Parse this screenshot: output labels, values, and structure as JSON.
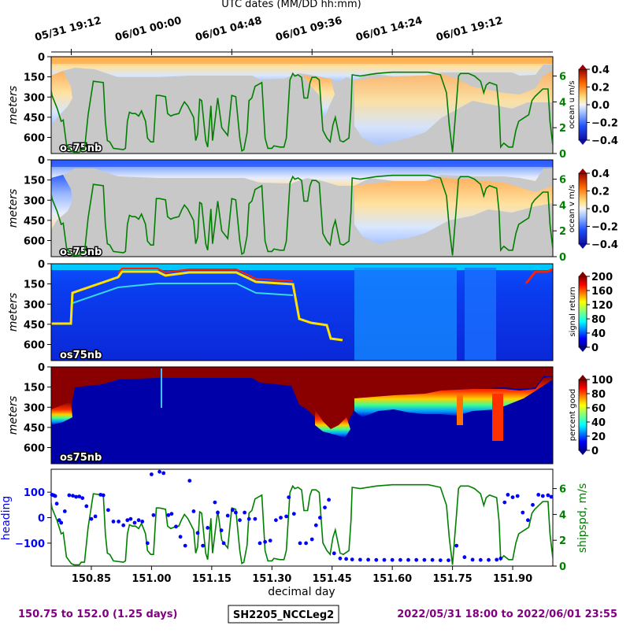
{
  "top_axis": {
    "label": "UTC dates (MM/DD hh:mm)",
    "ticks": [
      {
        "day": 150.8,
        "label": "05/31 19:12"
      },
      {
        "day": 151.0,
        "label": "06/01 00:00"
      },
      {
        "day": 151.2,
        "label": "06/01 04:48"
      },
      {
        "day": 151.4,
        "label": "06/01 09:36"
      },
      {
        "day": 151.6,
        "label": "06/01 14:24"
      },
      {
        "day": 151.8,
        "label": "06/01 19:12"
      }
    ]
  },
  "x_axis": {
    "label": "decimal day",
    "range": [
      150.75,
      152.0
    ],
    "ticks": [
      "150.85",
      "151.00",
      "151.15",
      "151.30",
      "151.45",
      "151.60",
      "151.75",
      "151.90"
    ],
    "tick_values": [
      150.85,
      151.0,
      151.15,
      151.3,
      151.45,
      151.6,
      151.75,
      151.9
    ]
  },
  "depth_axis": {
    "label": "meters",
    "range": [
      0,
      720
    ],
    "ticks": [
      "0",
      "150",
      "300",
      "450",
      "600"
    ],
    "tick_values": [
      0,
      150,
      300,
      450,
      600
    ]
  },
  "instrument": "os75nb",
  "panels": [
    {
      "id": "u",
      "colorbar_label": "ocean u m/s",
      "colorbar_ticks": [
        "0.4",
        "0.2",
        "0.0",
        "−0.2",
        "−0.4"
      ],
      "colormap": "diverging",
      "shipspd_ticks": [
        "6",
        "4",
        "2",
        "0"
      ]
    },
    {
      "id": "v",
      "colorbar_label": "ocean v m/s",
      "colorbar_ticks": [
        "0.4",
        "0.2",
        "0.0",
        "−0.2",
        "−0.4"
      ],
      "colormap": "diverging",
      "shipspd_ticks": [
        "6",
        "4",
        "2",
        "0"
      ]
    },
    {
      "id": "amp",
      "colorbar_label": "signal return",
      "colorbar_ticks": [
        "200",
        "160",
        "120",
        "80",
        "40",
        "0"
      ],
      "colormap": "jet"
    },
    {
      "id": "pg",
      "colorbar_label": "percent good",
      "colorbar_ticks": [
        "100",
        "80",
        "60",
        "40",
        "20",
        "0"
      ],
      "colormap": "jet"
    }
  ],
  "bottom_panel": {
    "heading_label": "heading",
    "heading_ticks": [
      "100",
      "0",
      "−100"
    ],
    "heading_tick_values": [
      100,
      0,
      -100
    ],
    "shipspd_label": "shipspd, m/s",
    "shipspd_ticks": [
      "6",
      "4",
      "2",
      "0"
    ],
    "shipspd_tick_values": [
      6,
      4,
      2,
      0
    ]
  },
  "footer": {
    "range_text": "150.75 to 152.0 (1.25 days)",
    "cruise_id": "SH2205_NCCLeg2",
    "date_range_text": "2022/05/31 18:00 to 2022/06/01 23:55"
  },
  "colors": {
    "shipspd_line": "#008000",
    "heading_points": "#0000ff",
    "footer_text": "#800080",
    "no_data": "#c8c8c8"
  },
  "chart_data": {
    "type": "line",
    "title": "",
    "xlabel": "decimal day",
    "xlim": [
      150.75,
      152.0
    ],
    "shipspd_ylim": [
      0,
      7.5
    ],
    "heading_ylim": [
      -190,
      190
    ],
    "series": [
      {
        "name": "shipspd, m/s",
        "x": [
          150.75,
          150.752,
          150.765,
          150.775,
          150.78,
          150.788,
          150.8,
          150.807,
          150.813,
          150.82,
          150.825,
          150.833,
          150.842,
          150.855,
          150.88,
          150.885,
          150.89,
          150.896,
          150.905,
          150.93,
          150.935,
          150.94,
          150.945,
          150.952,
          150.96,
          150.968,
          150.975,
          150.985,
          150.99,
          150.998,
          151.005,
          151.012,
          151.02,
          151.035,
          151.04,
          151.048,
          151.055,
          151.068,
          151.075,
          151.082,
          151.09,
          151.105,
          151.11,
          151.115,
          151.12,
          151.125,
          151.135,
          151.14,
          151.148,
          151.152,
          151.165,
          151.175,
          151.19,
          151.2,
          151.21,
          151.22,
          151.225,
          151.23,
          151.238,
          151.243,
          151.25,
          151.258,
          151.275,
          151.283,
          151.29,
          151.3,
          151.305,
          151.32,
          151.33,
          151.336,
          151.345,
          151.352,
          151.357,
          151.365,
          151.374,
          151.38,
          151.389,
          151.395,
          151.4,
          151.41,
          151.418,
          151.427,
          151.437,
          151.445,
          151.452,
          151.458,
          151.47,
          151.478,
          151.492,
          151.497,
          151.5,
          151.52,
          151.56,
          151.6,
          151.64,
          151.69,
          151.72,
          151.735,
          151.742,
          151.75,
          151.76,
          151.765,
          151.77,
          151.79,
          151.805,
          151.82,
          151.828,
          151.834,
          151.842,
          151.86,
          151.866,
          151.87,
          151.875,
          151.878,
          151.89,
          151.9,
          151.908,
          151.915,
          151.925,
          151.94,
          151.948,
          151.955,
          151.975,
          151.988,
          151.993,
          152.0
        ],
        "y": [
          4.9,
          4.5,
          3.5,
          2.5,
          2.6,
          0.7,
          0.2,
          0.1,
          0.1,
          0.1,
          0.3,
          0.3,
          3.0,
          5.6,
          5.5,
          2.5,
          1.0,
          0.9,
          0.4,
          0.3,
          0.4,
          2.5,
          3.2,
          3.1,
          3.1,
          2.9,
          3.3,
          2.5,
          1.2,
          0.9,
          0.9,
          4.5,
          4.5,
          4.4,
          3.1,
          2.9,
          3.0,
          3.1,
          3.6,
          4.0,
          3.7,
          2.8,
          1.0,
          1.5,
          4.2,
          4.1,
          1.0,
          0.5,
          3.7,
          1.0,
          4.3,
          2.0,
          1.4,
          4.5,
          4.4,
          1.2,
          0.2,
          0.3,
          1.6,
          4.1,
          4.3,
          5.2,
          5.5,
          1.2,
          0.4,
          0.4,
          0.6,
          0.5,
          0.5,
          1.2,
          5.7,
          6.2,
          6.0,
          6.1,
          5.9,
          4.3,
          4.3,
          5.5,
          5.9,
          5.9,
          5.7,
          1.8,
          1.2,
          0.9,
          2.2,
          2.8,
          1.0,
          0.9,
          1.2,
          3.5,
          6.1,
          6.0,
          6.2,
          6.3,
          6.3,
          6.3,
          6.1,
          4.7,
          2.2,
          0.1,
          4.0,
          6.0,
          6.2,
          6.2,
          6.0,
          5.6,
          4.7,
          5.3,
          5.5,
          5.3,
          3.5,
          0.5,
          0.7,
          0.8,
          0.5,
          0.5,
          1.8,
          2.5,
          2.7,
          3.0,
          4.1,
          4.4,
          5.0,
          5.0,
          2.5,
          0.6
        ]
      },
      {
        "name": "heading",
        "x": [
          150.752,
          150.756,
          150.76,
          150.764,
          150.77,
          150.775,
          150.784,
          150.795,
          150.804,
          150.812,
          150.82,
          150.828,
          150.838,
          150.85,
          150.86,
          150.873,
          150.88,
          150.892,
          150.905,
          150.918,
          150.93,
          150.94,
          150.948,
          150.958,
          150.968,
          150.977,
          150.99,
          151.0,
          151.005,
          151.02,
          151.03,
          151.042,
          151.05,
          151.061,
          151.072,
          151.084,
          151.095,
          151.105,
          151.115,
          151.128,
          151.14,
          151.158,
          151.165,
          151.174,
          151.18,
          151.19,
          151.202,
          151.21,
          151.22,
          151.232,
          151.243,
          151.258,
          151.27,
          151.283,
          151.296,
          151.31,
          151.322,
          151.336,
          151.342,
          151.355,
          151.37,
          151.385,
          151.4,
          151.41,
          151.42,
          151.432,
          151.442,
          151.455,
          151.47,
          151.485,
          151.5,
          151.52,
          151.54,
          151.56,
          151.58,
          151.6,
          151.62,
          151.64,
          151.66,
          151.68,
          151.7,
          151.72,
          151.74,
          151.76,
          151.78,
          151.8,
          151.82,
          151.84,
          151.86,
          151.87,
          151.88,
          151.888,
          151.9,
          151.912,
          151.925,
          151.938,
          151.95,
          151.964,
          151.975,
          151.988,
          151.996
        ],
        "y": [
          90,
          88,
          85,
          55,
          -10,
          -20,
          25,
          88,
          86,
          82,
          83,
          77,
          45,
          -5,
          5,
          90,
          88,
          30,
          -15,
          -15,
          -30,
          -10,
          -5,
          -20,
          -10,
          -15,
          -100,
          170,
          10,
          180,
          175,
          10,
          15,
          -35,
          -75,
          -110,
          145,
          25,
          -60,
          -110,
          -40,
          60,
          20,
          -50,
          -100,
          8,
          30,
          20,
          -10,
          20,
          -5,
          -5,
          -100,
          -95,
          -90,
          -10,
          0,
          5,
          80,
          15,
          -100,
          -100,
          -85,
          -30,
          0,
          40,
          70,
          -140,
          -160,
          -162,
          -164,
          -165,
          -165,
          -166,
          -166,
          -166,
          -166,
          -166,
          -166,
          -166,
          -166,
          -167,
          -167,
          -110,
          -155,
          -165,
          -166,
          -166,
          -165,
          -160,
          60,
          90,
          80,
          85,
          20,
          -10,
          50,
          90,
          85,
          88,
          82
        ]
      }
    ]
  }
}
